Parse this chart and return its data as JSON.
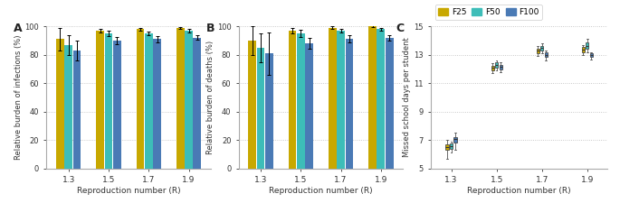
{
  "colors": {
    "F25": "#C8A800",
    "F50": "#3DBDB8",
    "F100": "#4A7AB5"
  },
  "R_values": [
    1.3,
    1.5,
    1.7,
    1.9
  ],
  "panel_A": {
    "bars": {
      "F25": [
        91,
        97,
        98,
        99
      ],
      "F50": [
        87,
        95,
        95,
        97
      ],
      "F100": [
        83,
        90,
        91,
        92
      ]
    },
    "errors": {
      "F25": [
        8,
        1.5,
        1.0,
        0.8
      ],
      "F50": [
        7,
        2.0,
        1.5,
        1.2
      ],
      "F100": [
        7,
        2.5,
        2.0,
        1.5
      ]
    },
    "ylabel": "Relative burden of infections (%)",
    "ylim": [
      0,
      100
    ],
    "yticks": [
      0,
      20,
      40,
      60,
      80,
      100
    ]
  },
  "panel_B": {
    "bars": {
      "F25": [
        90,
        97,
        99,
        100
      ],
      "F50": [
        85,
        95,
        97,
        98
      ],
      "F100": [
        81,
        88,
        91,
        92
      ]
    },
    "errors": {
      "F25": [
        10,
        2.0,
        1.0,
        0.5
      ],
      "F50": [
        10,
        2.5,
        1.5,
        1.0
      ],
      "F100": [
        15,
        4.0,
        2.5,
        2.0
      ]
    },
    "ylabel": "Relative burden of deaths (%)",
    "ylim": [
      0,
      100
    ],
    "yticks": [
      0,
      20,
      40,
      60,
      80,
      100
    ]
  },
  "panel_C": {
    "boxes": {
      "F25": {
        "1.3": {
          "q1": 6.3,
          "median": 6.5,
          "q3": 6.7,
          "whislo": 5.7,
          "whishi": 7.0
        },
        "1.5": {
          "q1": 11.9,
          "median": 12.1,
          "q3": 12.25,
          "whislo": 11.7,
          "whishi": 12.4
        },
        "1.7": {
          "q1": 13.1,
          "median": 13.3,
          "q3": 13.45,
          "whislo": 12.9,
          "whishi": 13.6
        },
        "1.9": {
          "q1": 13.2,
          "median": 13.35,
          "q3": 13.55,
          "whislo": 13.0,
          "whishi": 13.7
        }
      },
      "F50": {
        "1.3": {
          "q1": 6.4,
          "median": 6.6,
          "q3": 6.75,
          "whislo": 6.1,
          "whishi": 6.9
        },
        "1.5": {
          "q1": 12.1,
          "median": 12.3,
          "q3": 12.45,
          "whislo": 11.9,
          "whishi": 12.6
        },
        "1.7": {
          "q1": 13.3,
          "median": 13.5,
          "q3": 13.65,
          "whislo": 13.1,
          "whishi": 13.8
        },
        "1.9": {
          "q1": 13.45,
          "median": 13.65,
          "q3": 13.9,
          "whislo": 13.2,
          "whishi": 14.1
        }
      },
      "F100": {
        "1.3": {
          "q1": 6.8,
          "median": 7.05,
          "q3": 7.2,
          "whislo": 6.3,
          "whishi": 7.5
        },
        "1.5": {
          "q1": 12.0,
          "median": 12.15,
          "q3": 12.3,
          "whislo": 11.8,
          "whishi": 12.45
        },
        "1.7": {
          "q1": 12.85,
          "median": 13.0,
          "q3": 13.15,
          "whislo": 12.6,
          "whishi": 13.3
        },
        "1.9": {
          "q1": 12.85,
          "median": 13.0,
          "q3": 13.1,
          "whislo": 12.65,
          "whishi": 13.2
        }
      }
    },
    "ylabel": "Missed school days per student",
    "ylim": [
      5,
      15
    ],
    "yticks": [
      5,
      7,
      9,
      11,
      13,
      15
    ]
  },
  "xlabel": "Reproduction number (R)",
  "background": "#ffffff",
  "grid_color": "#bbbbbb"
}
